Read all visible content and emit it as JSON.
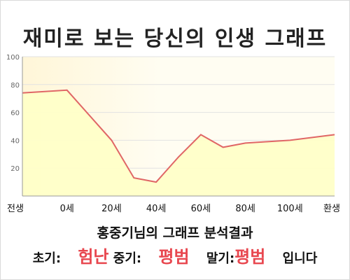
{
  "title": "재미로 보는 당신의 인생 그래프",
  "summary": {
    "title": "홍중기님의 그래프 분석결과",
    "early_label": "초기:",
    "early_value": "험난",
    "mid_label": "중기:",
    "mid_value": "평범",
    "late_label": "말기:",
    "late_value": "평범",
    "ending": "입니다"
  },
  "colors": {
    "line": "#e06666",
    "fill": "#ffffc8",
    "highlight": "#e8474f"
  },
  "chart_data": {
    "type": "area",
    "x_labels": [
      "전생",
      "0세",
      "20세",
      "40세",
      "60세",
      "80세",
      "100세",
      "환생"
    ],
    "x": [
      -20,
      0,
      20,
      30,
      40,
      50,
      60,
      70,
      80,
      90,
      100,
      120
    ],
    "values": [
      74,
      76,
      40,
      13,
      10,
      28,
      44,
      35,
      38,
      39,
      40,
      44
    ],
    "y_ticks": [
      20,
      40,
      60,
      80,
      100
    ],
    "ylim": [
      0,
      100
    ],
    "xlim": [
      -20,
      120
    ],
    "grid": true
  }
}
